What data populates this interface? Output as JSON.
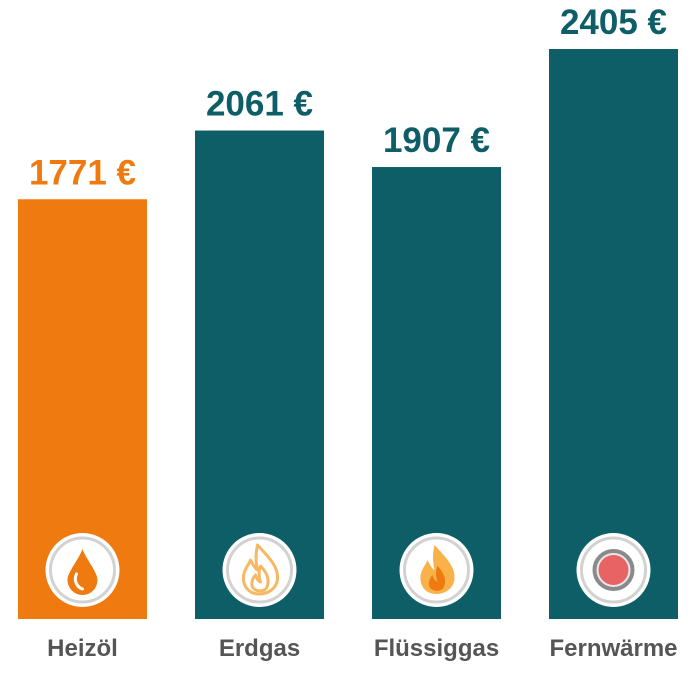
{
  "chart_data": {
    "type": "bar",
    "categories": [
      "Heizöl",
      "Erdgas",
      "Flüssiggas",
      "Fernwärme"
    ],
    "values": [
      1771,
      2061,
      1907,
      2405
    ],
    "value_labels": [
      "1771 €",
      "2061 €",
      "1907 €",
      "2405 €"
    ],
    "icons": [
      "oil-drop-icon",
      "flame-icon",
      "flame-icon",
      "district-heat-icon"
    ],
    "colors": [
      "#ee7a10",
      "#0d5e66",
      "#0d5e66",
      "#0d5e66"
    ],
    "label_colors": [
      "#ee7a10",
      "#0d5e66",
      "#0d5e66",
      "#0d5e66"
    ],
    "title": "",
    "xlabel": "",
    "ylabel": "",
    "ylim": [
      0,
      2405
    ],
    "grid": false,
    "legend": "none"
  }
}
